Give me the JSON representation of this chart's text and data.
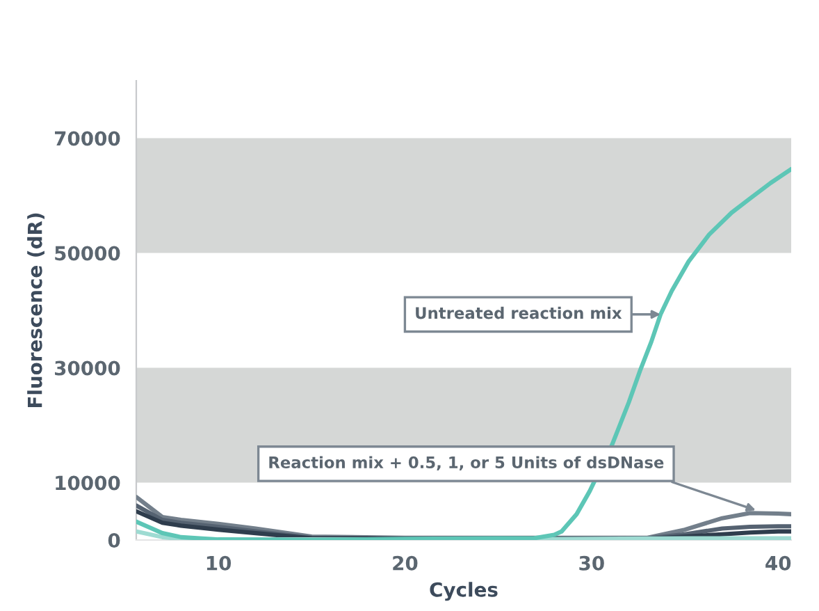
{
  "chart_data": {
    "type": "line",
    "xlabel": "Cycles",
    "ylabel": "Fluorescence (dR)",
    "xlim": [
      5.6,
      40.7
    ],
    "ylim": [
      0,
      80000
    ],
    "xticks": [
      10,
      20,
      30,
      40
    ],
    "yticks": [
      0,
      10000,
      30000,
      50000,
      70000
    ],
    "grid": false,
    "legend": false,
    "marker": "none",
    "line_style": "solid",
    "bands": [
      {
        "axis": "y",
        "from": 10000,
        "to": 30000,
        "color": "#d5d7d6"
      },
      {
        "axis": "y",
        "from": 50000,
        "to": 70000,
        "color": "#d5d7d6"
      }
    ],
    "series": [
      {
        "color": "#737f8b",
        "x": [
          5.6,
          7,
          8,
          10,
          12,
          15,
          20,
          25,
          30,
          33,
          35,
          37,
          38.5,
          40,
          40.7
        ],
        "values": [
          7500,
          4000,
          3500,
          2800,
          2000,
          600,
          400,
          400,
          400,
          400,
          1800,
          3800,
          4700,
          4600,
          4500
        ]
      },
      {
        "color": "#556271",
        "x": [
          5.6,
          7,
          8,
          10,
          12,
          15,
          20,
          25,
          30,
          33,
          35,
          37,
          38.5,
          40,
          40.7
        ],
        "values": [
          6000,
          3500,
          3000,
          2300,
          1500,
          400,
          300,
          300,
          300,
          300,
          1000,
          2000,
          2300,
          2400,
          2400
        ]
      },
      {
        "color": "#2f3d4d",
        "x": [
          5.6,
          7,
          8,
          10,
          12,
          15,
          20,
          25,
          30,
          33,
          35,
          37,
          38.5,
          40,
          40.7
        ],
        "values": [
          5000,
          3000,
          2500,
          1800,
          1200,
          300,
          200,
          200,
          200,
          200,
          600,
          1000,
          1300,
          1500,
          1500
        ]
      },
      {
        "color": "#9edbd2",
        "x": [
          5.6,
          7,
          8,
          10,
          15,
          20,
          25,
          30,
          35,
          40.7
        ],
        "values": [
          1500,
          500,
          200,
          100,
          100,
          100,
          100,
          200,
          300,
          300
        ]
      },
      {
        "color": "#5dc6b6",
        "x": [
          5.6,
          7,
          8,
          10,
          15,
          20,
          25,
          26.9,
          28,
          28.4,
          29.2,
          29.9,
          30.5,
          31.1,
          32,
          32.6,
          33.2,
          33.7,
          34.3,
          35.2,
          36.3,
          37.5,
          38.5,
          39.6,
          40.7
        ],
        "values": [
          3200,
          1200,
          500,
          100,
          0,
          200,
          300,
          300,
          900,
          1500,
          4500,
          8500,
          null,
          16600,
          24000,
          29500,
          34500,
          39300,
          43400,
          48500,
          53200,
          57000,
          59500,
          62200,
          64600
        ]
      }
    ],
    "annotations": [
      {
        "text": "Untreated reaction mix",
        "x": 33.7,
        "y": 39300
      },
      {
        "text": "Reaction mix + 0.5, 1, or 5 Units of dsDNase",
        "x": 38.8,
        "y": 5200
      }
    ]
  }
}
